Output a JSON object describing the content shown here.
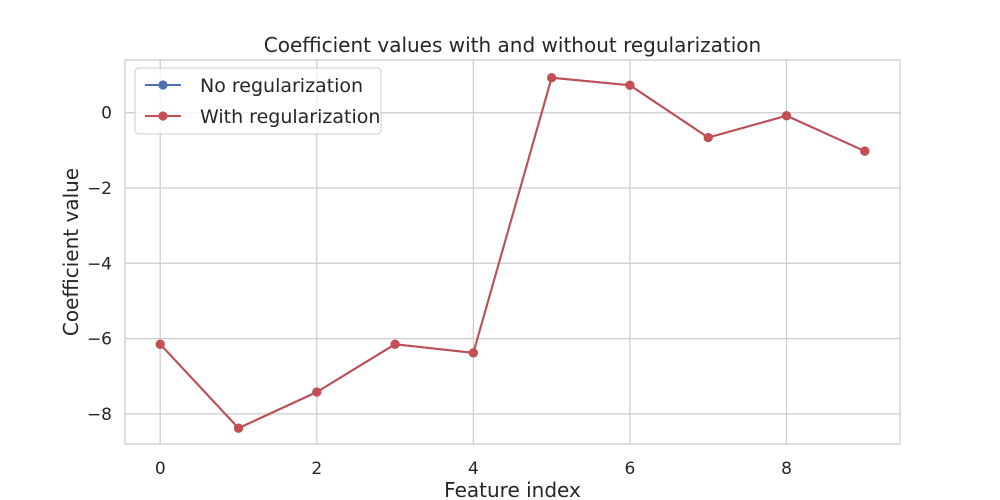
{
  "chart_data": {
    "type": "line",
    "title": "Coefficient values with and without regularization",
    "xlabel": "Feature index",
    "ylabel": "Coefficient value",
    "x": [
      0,
      1,
      2,
      3,
      4,
      5,
      6,
      7,
      8,
      9
    ],
    "xlim": [
      -0.45,
      9.45
    ],
    "ylim": [
      -8.8,
      1.4
    ],
    "xticks": [
      0,
      2,
      4,
      6,
      8
    ],
    "xtick_labels": [
      "0",
      "2",
      "4",
      "6",
      "8"
    ],
    "yticks": [
      0,
      -2,
      -4,
      -6,
      -8
    ],
    "ytick_labels": [
      "0",
      "−2",
      "−4",
      "−6",
      "−8"
    ],
    "grid": true,
    "legend_position": "top-left",
    "series": [
      {
        "name": "No regularization",
        "color": "#4c72b0",
        "marker": "circle",
        "values": [
          -6.15,
          -8.38,
          -7.42,
          -6.15,
          -6.38,
          0.93,
          0.73,
          -0.66,
          -0.08,
          -1.02
        ]
      },
      {
        "name": "With regularization",
        "color": "#c44e52",
        "marker": "circle",
        "values": [
          -6.15,
          -8.38,
          -7.42,
          -6.15,
          -6.38,
          0.93,
          0.73,
          -0.66,
          -0.08,
          -1.02
        ]
      }
    ]
  }
}
